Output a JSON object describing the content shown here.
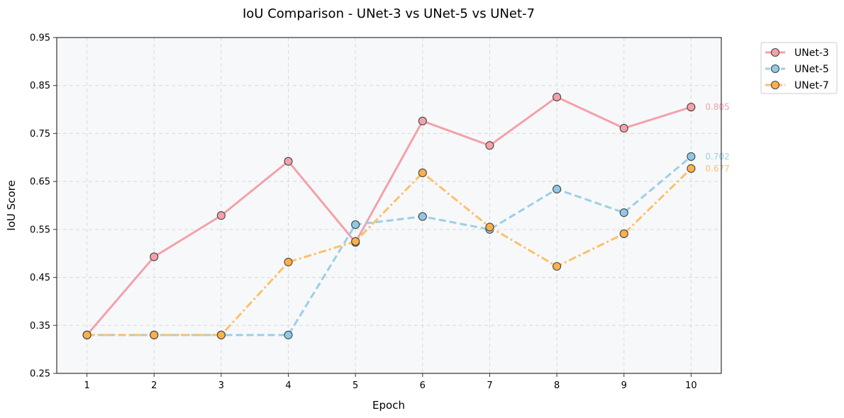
{
  "chart_data": {
    "type": "line",
    "title": "IoU Comparison - UNet-3 vs UNet-5 vs UNet-7",
    "xlabel": "Epoch",
    "ylabel": "IoU Score",
    "x": [
      1,
      2,
      3,
      4,
      5,
      6,
      7,
      8,
      9,
      10
    ],
    "xticks": [
      "1",
      "2",
      "3",
      "4",
      "5",
      "6",
      "7",
      "8",
      "9",
      "10"
    ],
    "xlim": [
      0.55,
      10.45
    ],
    "ylim": [
      0.25,
      0.95
    ],
    "yticks": [
      "0.25",
      "0.35",
      "0.45",
      "0.55",
      "0.65",
      "0.75",
      "0.85",
      "0.95"
    ],
    "grid": true,
    "legend_position": "outside-top-right",
    "series": [
      {
        "name": "UNet-3",
        "color": "#f4a1aa",
        "marker_color": "#f4a1aa",
        "line_style": "solid",
        "values": [
          0.33,
          0.493,
          0.579,
          0.692,
          0.523,
          0.776,
          0.725,
          0.826,
          0.761,
          0.805
        ],
        "end_label": "0.805"
      },
      {
        "name": "UNet-5",
        "color": "#9ccfe6",
        "marker_color": "#8ecae6",
        "line_style": "dashed",
        "values": [
          0.33,
          0.33,
          0.33,
          0.33,
          0.56,
          0.577,
          0.55,
          0.634,
          0.585,
          0.702
        ],
        "end_label": "0.702"
      },
      {
        "name": "UNet-7",
        "color": "#fbc16a",
        "marker_color": "#fbb04a",
        "line_style": "dashdot",
        "values": [
          0.33,
          0.33,
          0.33,
          0.482,
          0.525,
          0.668,
          0.555,
          0.473,
          0.541,
          0.677
        ],
        "end_label": "0.677"
      }
    ]
  }
}
